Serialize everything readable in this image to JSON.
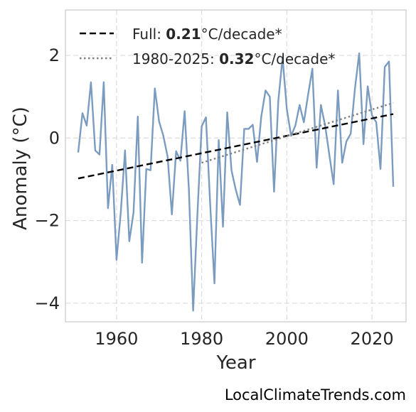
{
  "chart_data": {
    "type": "line",
    "xlabel": "Year",
    "ylabel": "Anomaly (°C)",
    "xlim": [
      1948,
      2028
    ],
    "ylim": [
      -4.45,
      3.1
    ],
    "xticks": [
      1960,
      1980,
      2000,
      2020
    ],
    "yticks": [
      -4,
      -2,
      0,
      2
    ],
    "ytick_labels": [
      "−4",
      "−2",
      "0",
      "2"
    ],
    "grid": true,
    "legend_position": "top-left",
    "series": [
      {
        "type": "line",
        "color": "#7b9cc0",
        "x": [
          1951,
          1952,
          1953,
          1954,
          1955,
          1956,
          1957,
          1958,
          1959,
          1960,
          1961,
          1962,
          1963,
          1964,
          1965,
          1966,
          1967,
          1968,
          1969,
          1970,
          1971,
          1972,
          1973,
          1974,
          1975,
          1976,
          1977,
          1978,
          1979,
          1980,
          1981,
          1982,
          1983,
          1984,
          1985,
          1986,
          1987,
          1988,
          1989,
          1990,
          1991,
          1992,
          1993,
          1994,
          1995,
          1996,
          1997,
          1998,
          1999,
          2000,
          2001,
          2002,
          2003,
          2004,
          2005,
          2006,
          2007,
          2008,
          2009,
          2010,
          2011,
          2012,
          2013,
          2014,
          2015,
          2016,
          2017,
          2018,
          2019,
          2020,
          2021,
          2022,
          2023,
          2024,
          2025
        ],
        "y": [
          -0.35,
          0.6,
          0.3,
          1.35,
          -0.3,
          -0.4,
          1.35,
          -1.7,
          -0.65,
          -2.95,
          -1.8,
          -0.3,
          -2.5,
          -1.8,
          0.52,
          -3.02,
          -0.75,
          -0.78,
          1.2,
          0.4,
          0.05,
          -0.45,
          -1.85,
          -0.32,
          -0.55,
          0.65,
          -1.25,
          -4.18,
          -1.85,
          0.28,
          0.5,
          -1.6,
          -3.52,
          -0.05,
          -2.15,
          0.62,
          -0.78,
          -1.25,
          -1.62,
          0.22,
          0.22,
          0.32,
          -0.58,
          0.52,
          1.15,
          1.0,
          -1.3,
          0.9,
          1.95,
          0.7,
          0.05,
          0.3,
          0.8,
          0.38,
          1.05,
          1.68,
          -0.72,
          0.8,
          0.3,
          -0.42,
          -1.12,
          1.15,
          -0.6,
          -0.08,
          0.1,
          1.2,
          2.05,
          -0.15,
          1.25,
          0.55,
          0.38,
          -0.75,
          1.72,
          1.85,
          -1.18
        ]
      },
      {
        "type": "trend",
        "name": "Full:",
        "rate": "0.21",
        "unit": "°C/decade*",
        "style": "dashed",
        "color": "#000000",
        "x": [
          1951,
          2025
        ],
        "y": [
          -0.98,
          0.58
        ]
      },
      {
        "type": "trend",
        "name": "1980-2025:",
        "rate": "0.32",
        "unit": "°C/decade*",
        "style": "dotted",
        "color": "#808080",
        "x": [
          1980,
          2025
        ],
        "y": [
          -0.6,
          0.85
        ]
      }
    ]
  },
  "watermark": "LocalClimateTrends.com"
}
